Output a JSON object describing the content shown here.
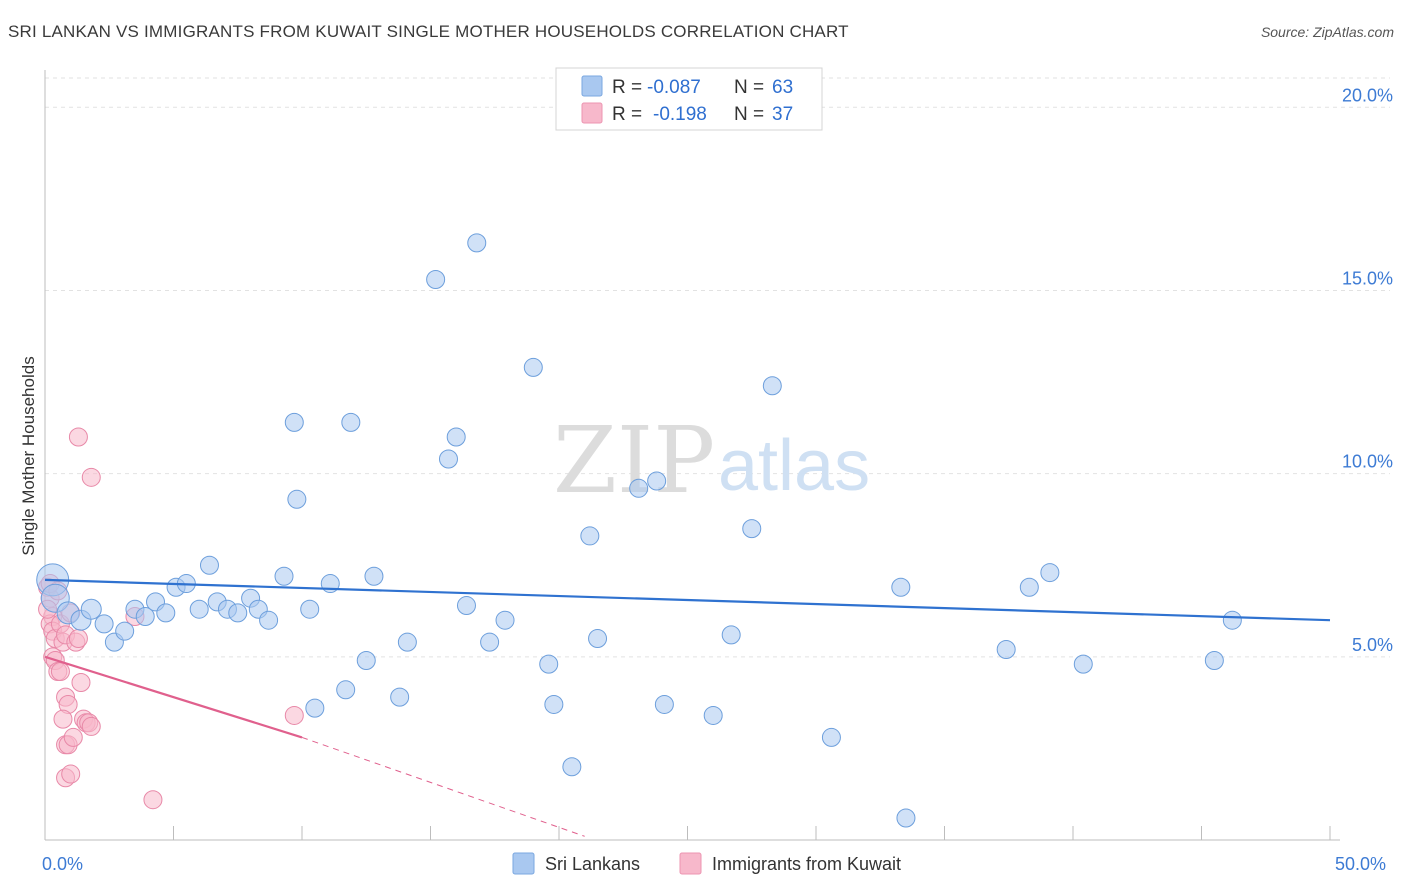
{
  "header": {
    "title": "SRI LANKAN VS IMMIGRANTS FROM KUWAIT SINGLE MOTHER HOUSEHOLDS CORRELATION CHART",
    "source": "Source: ZipAtlas.com"
  },
  "watermark": {
    "zip": "ZIP",
    "atlas": "atlas"
  },
  "legend": {
    "r_label": "R =",
    "n_label": "N =",
    "rows": [
      {
        "r": "-0.087",
        "n": "63",
        "color": "#a9c8f0"
      },
      {
        "r": "-0.198",
        "n": "37",
        "color": "#f7b8cb"
      }
    ]
  },
  "bottom_legend": [
    {
      "label": "Sri Lankans",
      "color": "#a9c8f0"
    },
    {
      "label": "Immigrants from Kuwait",
      "color": "#f7b8cb"
    }
  ],
  "axis": {
    "ylabel": "Single Mother Households",
    "x_min_label": "0.0%",
    "x_max_label": "50.0%",
    "y_ticks": [
      "5.0%",
      "10.0%",
      "15.0%",
      "20.0%"
    ]
  },
  "chart_data": {
    "type": "scatter",
    "title": "SRI LANKAN VS IMMIGRANTS FROM KUWAIT SINGLE MOTHER HOUSEHOLDS CORRELATION CHART",
    "xlabel": "",
    "ylabel": "Single Mother Households",
    "xlim": [
      0,
      50
    ],
    "ylim": [
      0,
      20.8
    ],
    "y_tick_values": [
      5,
      10,
      15,
      20
    ],
    "grid": true,
    "legend_placement": "top-center",
    "series": [
      {
        "name": "Sri Lankans",
        "color": "#a9c8f0",
        "stroke": "#6d9fdc",
        "r": -0.087,
        "n": 63,
        "trend": {
          "x": [
            0,
            50
          ],
          "y": [
            7.1,
            6.0
          ],
          "color": "#2f72d0"
        },
        "points": [
          [
            0.3,
            7.1,
            16
          ],
          [
            0.4,
            6.6,
            14
          ],
          [
            0.9,
            6.2,
            11
          ],
          [
            1.4,
            6.0,
            10
          ],
          [
            1.8,
            6.3,
            10
          ],
          [
            2.3,
            5.9,
            9
          ],
          [
            2.7,
            5.4,
            9
          ],
          [
            3.1,
            5.7,
            9
          ],
          [
            3.5,
            6.3,
            9
          ],
          [
            3.9,
            6.1,
            9
          ],
          [
            4.3,
            6.5,
            9
          ],
          [
            4.7,
            6.2,
            9
          ],
          [
            5.1,
            6.9,
            9
          ],
          [
            5.5,
            7.0,
            9
          ],
          [
            6.0,
            6.3,
            9
          ],
          [
            6.4,
            7.5,
            9
          ],
          [
            6.7,
            6.5,
            9
          ],
          [
            7.1,
            6.3,
            9
          ],
          [
            7.5,
            6.2,
            9
          ],
          [
            8.0,
            6.6,
            9
          ],
          [
            8.3,
            6.3,
            9
          ],
          [
            8.7,
            6.0,
            9
          ],
          [
            9.3,
            7.2,
            9
          ],
          [
            9.7,
            11.4,
            9
          ],
          [
            9.8,
            9.3,
            9
          ],
          [
            10.3,
            6.3,
            9
          ],
          [
            10.5,
            3.6,
            9
          ],
          [
            11.1,
            7.0,
            9
          ],
          [
            11.7,
            4.1,
            9
          ],
          [
            11.9,
            11.4,
            9
          ],
          [
            12.5,
            4.9,
            9
          ],
          [
            12.8,
            7.2,
            9
          ],
          [
            13.8,
            3.9,
            9
          ],
          [
            14.1,
            5.4,
            9
          ],
          [
            15.2,
            15.3,
            9
          ],
          [
            15.7,
            10.4,
            9
          ],
          [
            16.0,
            11.0,
            9
          ],
          [
            16.4,
            6.4,
            9
          ],
          [
            16.8,
            16.3,
            9
          ],
          [
            17.3,
            5.4,
            9
          ],
          [
            17.9,
            6.0,
            9
          ],
          [
            19.0,
            12.9,
            9
          ],
          [
            19.6,
            4.8,
            9
          ],
          [
            19.8,
            3.7,
            9
          ],
          [
            20.5,
            2.0,
            9
          ],
          [
            21.2,
            8.3,
            9
          ],
          [
            21.5,
            5.5,
            9
          ],
          [
            23.1,
            9.6,
            9
          ],
          [
            23.8,
            9.8,
            9
          ],
          [
            24.1,
            3.7,
            9
          ],
          [
            26.0,
            3.4,
            9
          ],
          [
            26.7,
            5.6,
            9
          ],
          [
            27.5,
            8.5,
            9
          ],
          [
            28.3,
            12.4,
            9
          ],
          [
            30.6,
            2.8,
            9
          ],
          [
            33.3,
            6.9,
            9
          ],
          [
            33.5,
            0.6,
            9
          ],
          [
            37.4,
            5.2,
            9
          ],
          [
            38.3,
            6.9,
            9
          ],
          [
            39.1,
            7.3,
            9
          ],
          [
            40.4,
            4.8,
            9
          ],
          [
            45.5,
            4.9,
            9
          ],
          [
            46.2,
            6.0,
            9
          ]
        ]
      },
      {
        "name": "Immigrants from Kuwait",
        "color": "#f7b8cb",
        "stroke": "#e889a8",
        "r": -0.198,
        "n": 37,
        "trend": {
          "x": [
            0,
            10
          ],
          "y": [
            5.0,
            2.8
          ],
          "dashed_to": [
            21,
            0.1
          ],
          "color": "#e0608d"
        },
        "points": [
          [
            0.1,
            6.9,
            9
          ],
          [
            0.2,
            6.6,
            9
          ],
          [
            0.3,
            6.1,
            9
          ],
          [
            0.2,
            5.9,
            9
          ],
          [
            0.3,
            5.7,
            9
          ],
          [
            0.4,
            5.5,
            9
          ],
          [
            0.3,
            5.0,
            9
          ],
          [
            0.4,
            4.9,
            9
          ],
          [
            0.5,
            4.6,
            9
          ],
          [
            0.6,
            4.6,
            9
          ],
          [
            0.6,
            5.9,
            9
          ],
          [
            0.7,
            5.4,
            9
          ],
          [
            0.8,
            5.6,
            9
          ],
          [
            0.8,
            3.9,
            9
          ],
          [
            0.9,
            3.7,
            9
          ],
          [
            0.7,
            3.3,
            9
          ],
          [
            0.8,
            2.6,
            9
          ],
          [
            0.9,
            2.6,
            9
          ],
          [
            0.8,
            1.7,
            9
          ],
          [
            1.0,
            1.8,
            9
          ],
          [
            1.1,
            2.8,
            9
          ],
          [
            1.2,
            5.4,
            9
          ],
          [
            1.3,
            5.5,
            9
          ],
          [
            1.4,
            4.3,
            9
          ],
          [
            1.5,
            3.3,
            9
          ],
          [
            1.6,
            3.2,
            9
          ],
          [
            1.7,
            3.2,
            9
          ],
          [
            1.8,
            3.1,
            9
          ],
          [
            1.3,
            11.0,
            9
          ],
          [
            1.8,
            9.9,
            9
          ],
          [
            3.5,
            6.1,
            9
          ],
          [
            4.2,
            1.1,
            9
          ],
          [
            9.7,
            3.4,
            9
          ],
          [
            0.1,
            6.3,
            9
          ],
          [
            0.2,
            7.0,
            9
          ],
          [
            0.5,
            6.8,
            9
          ],
          [
            1.0,
            6.2,
            9
          ]
        ]
      }
    ]
  }
}
